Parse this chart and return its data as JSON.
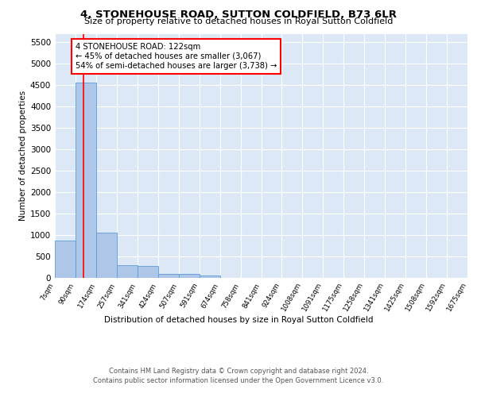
{
  "title": "4, STONEHOUSE ROAD, SUTTON COLDFIELD, B73 6LR",
  "subtitle": "Size of property relative to detached houses in Royal Sutton Coldfield",
  "xlabel": "Distribution of detached houses by size in Royal Sutton Coldfield",
  "ylabel": "Number of detached properties",
  "property_size": 122,
  "bar_color": "#aec6e8",
  "bar_edge_color": "#5b9bd5",
  "vline_color": "red",
  "vline_x": 122,
  "annotation_line1": "4 STONEHOUSE ROAD: 122sqm",
  "annotation_line2": "← 45% of detached houses are smaller (3,067)",
  "annotation_line3": "54% of semi-detached houses are larger (3,738) →",
  "annotation_box_color": "white",
  "annotation_box_edge_color": "red",
  "bin_edges": [
    7,
    90,
    174,
    257,
    341,
    424,
    507,
    591,
    674,
    758,
    841,
    924,
    1008,
    1091,
    1175,
    1258,
    1341,
    1425,
    1508,
    1592,
    1675
  ],
  "bin_counts": [
    880,
    4560,
    1060,
    290,
    285,
    100,
    95,
    55,
    0,
    0,
    0,
    0,
    0,
    0,
    0,
    0,
    0,
    0,
    0,
    0
  ],
  "ylim": [
    0,
    5700
  ],
  "yticks": [
    0,
    500,
    1000,
    1500,
    2000,
    2500,
    3000,
    3500,
    4000,
    4500,
    5000,
    5500
  ],
  "plot_background_color": "#dce8f5",
  "footer_line1": "Contains HM Land Registry data © Crown copyright and database right 2024.",
  "footer_line2": "Contains public sector information licensed under the Open Government Licence v3.0."
}
